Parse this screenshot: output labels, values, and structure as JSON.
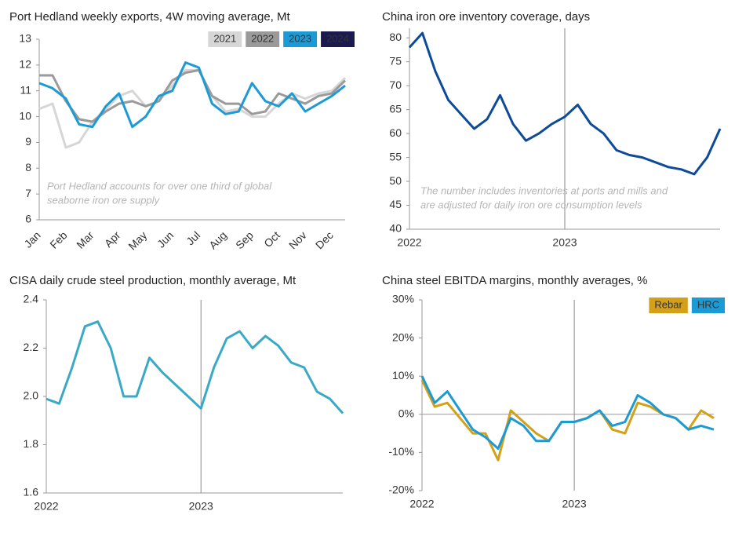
{
  "chart_data": [
    {
      "type": "line",
      "title": "Port Hedland weekly exports, 4W moving average, Mt",
      "categories": [
        "Jan",
        null,
        "Feb",
        null,
        "Mar",
        null,
        "Apr",
        null,
        "May",
        null,
        "Jun",
        null,
        "Jul",
        null,
        "Aug",
        null,
        "Sep",
        null,
        "Oct",
        null,
        "Nov",
        null,
        "Dec",
        null
      ],
      "series": [
        {
          "name": "2021",
          "color": "#d6d6d6",
          "values": [
            10.3,
            10.5,
            8.8,
            9.0,
            9.8,
            10.3,
            10.8,
            11.0,
            10.4,
            10.6,
            11.2,
            11.8,
            11.8,
            10.8,
            10.2,
            10.3,
            10.0,
            10.0,
            10.5,
            10.9,
            10.7,
            10.9,
            11.0,
            11.5
          ]
        },
        {
          "name": "2022",
          "color": "#9a9a9a",
          "values": [
            11.6,
            11.6,
            10.6,
            9.9,
            9.8,
            10.2,
            10.5,
            10.6,
            10.4,
            10.6,
            11.4,
            11.7,
            11.8,
            10.8,
            10.5,
            10.5,
            10.1,
            10.2,
            10.9,
            10.7,
            10.5,
            10.8,
            10.9,
            11.4
          ]
        },
        {
          "name": "2023",
          "color": "#1c9ad6",
          "values": [
            11.3,
            11.1,
            10.7,
            9.7,
            9.6,
            10.4,
            10.9,
            9.6,
            10.0,
            10.8,
            11.0,
            12.1,
            11.9,
            10.5,
            10.1,
            10.2,
            11.3,
            10.6,
            10.4,
            10.9,
            10.2,
            10.5,
            10.8,
            11.2
          ]
        },
        {
          "name": "2024",
          "color": "#1b1a4f",
          "values": [
            null,
            null,
            null,
            null,
            null,
            null,
            null,
            null,
            null,
            null,
            null,
            null,
            null,
            null,
            null,
            null,
            null,
            null,
            null,
            null,
            null,
            null,
            null,
            null
          ]
        }
      ],
      "ylim": [
        6,
        13
      ],
      "yticks": [
        6,
        7,
        8,
        9,
        10,
        11,
        12,
        13
      ],
      "annotation": [
        "Port Hedland accounts for over one third of global",
        "seaborne iron ore supply"
      ]
    },
    {
      "type": "line",
      "title": "China iron ore inventory coverage, days",
      "categories": [
        "2022",
        null,
        null,
        null,
        null,
        null,
        null,
        null,
        null,
        null,
        null,
        null,
        "2023",
        null,
        null,
        null,
        null,
        null,
        null,
        null,
        null,
        null,
        null,
        null,
        null
      ],
      "series": [
        {
          "name": "Inventory coverage",
          "color": "#0e4a9a",
          "values": [
            78,
            81,
            73,
            67,
            64,
            61,
            63,
            68,
            62,
            58.5,
            60,
            62,
            63.5,
            66,
            62,
            60,
            56.5,
            55.5,
            55,
            54,
            53,
            52.5,
            51.5,
            55,
            61
          ]
        }
      ],
      "ylim": [
        40,
        82
      ],
      "yticks": [
        40,
        45,
        50,
        55,
        60,
        65,
        70,
        75,
        80
      ],
      "vgrid": true,
      "annotation": [
        "The number includes inventories at ports and mills and",
        "are adjusted for daily iron ore consumption levels"
      ]
    },
    {
      "type": "line",
      "title": "CISA daily crude steel production, monthly average, Mt",
      "categories": [
        "2022",
        null,
        null,
        null,
        null,
        null,
        null,
        null,
        null,
        null,
        null,
        null,
        "2023",
        null,
        null,
        null,
        null,
        null,
        null,
        null,
        null,
        null,
        null,
        null
      ],
      "series": [
        {
          "name": "Crude steel production",
          "color": "#3aa9c6",
          "values": [
            1.99,
            1.97,
            2.12,
            2.29,
            2.31,
            2.2,
            2.0,
            2.0,
            2.16,
            2.1,
            2.05,
            2.0,
            1.95,
            2.12,
            2.24,
            2.27,
            2.2,
            2.25,
            2.21,
            2.14,
            2.12,
            2.02,
            1.99,
            1.93
          ]
        }
      ],
      "ylim": [
        1.6,
        2.4
      ],
      "yticks": [
        1.6,
        1.8,
        {
          "value": 2,
          "label": "2.0"
        },
        2.2,
        2.4
      ],
      "vgrid": true
    },
    {
      "type": "line",
      "title": "China steel EBITDA margins, monthly averages, %",
      "categories": [
        "2022",
        null,
        null,
        null,
        null,
        null,
        null,
        null,
        null,
        null,
        null,
        null,
        "2023",
        null,
        null,
        null,
        null,
        null,
        null,
        null,
        null,
        null,
        null,
        null
      ],
      "series": [
        {
          "name": "Rebar",
          "color": "#d4a017",
          "values": [
            9,
            2,
            3,
            -1,
            -5,
            -5,
            -12,
            1,
            -2,
            -5,
            -7,
            -2,
            -2,
            -1,
            1,
            -4,
            -5,
            3,
            2,
            0,
            -1,
            -4,
            1,
            -1
          ]
        },
        {
          "name": "HRC",
          "color": "#1c9ad6",
          "values": [
            10,
            3,
            6,
            1,
            -4,
            -6,
            -9,
            -1,
            -3,
            -7,
            -7,
            -2,
            -2,
            -1,
            1,
            -3,
            -2,
            5,
            3,
            0,
            -1,
            -4,
            -3,
            -4
          ]
        }
      ],
      "ylim": [
        -20,
        30
      ],
      "yticks": [
        {
          "value": -20,
          "label": "-20%"
        },
        {
          "value": -10,
          "label": "-10%"
        },
        {
          "value": 0,
          "label": "0%"
        },
        {
          "value": 10,
          "label": "10%"
        },
        {
          "value": 20,
          "label": "20%"
        },
        {
          "value": 30,
          "label": "30%"
        }
      ],
      "vgrid": true
    }
  ]
}
